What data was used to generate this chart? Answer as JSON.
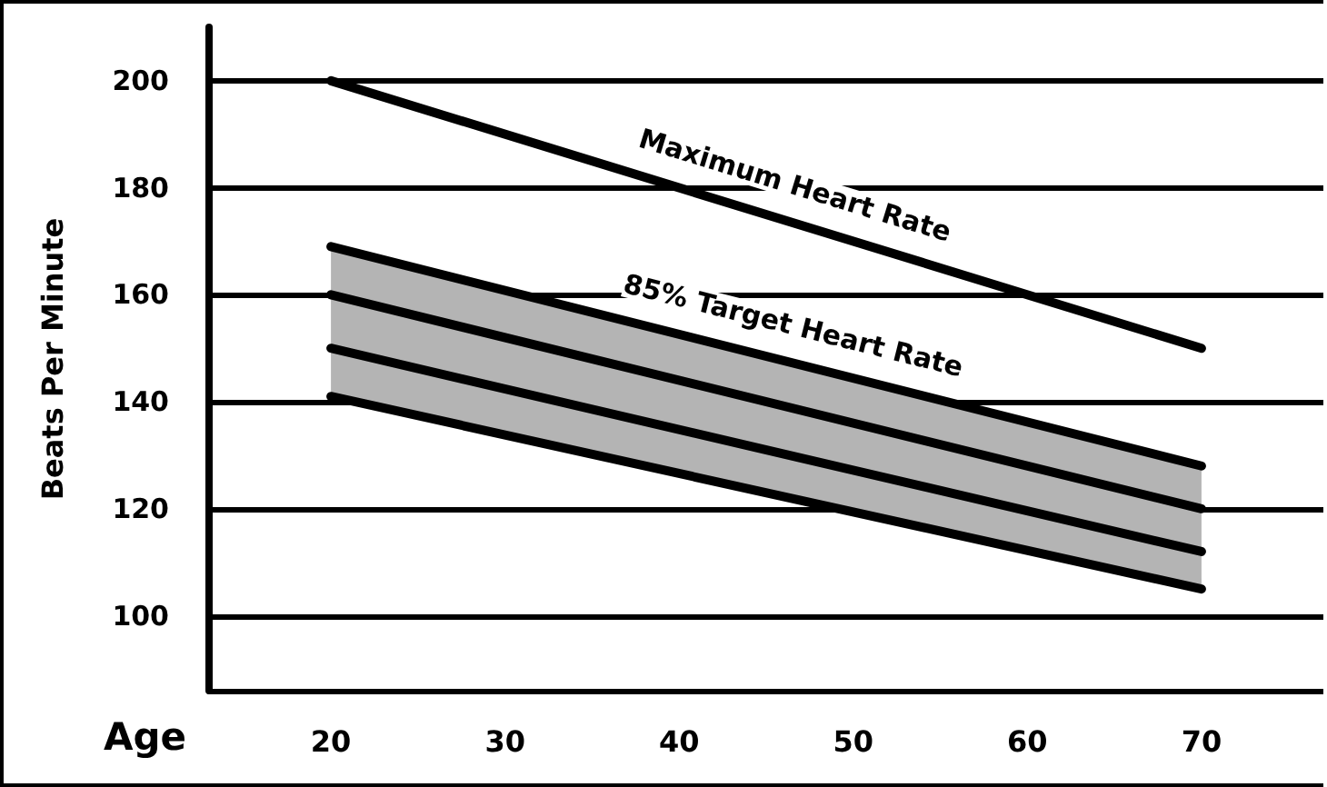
{
  "chart_data": {
    "type": "line",
    "xlabel": "Age",
    "ylabel": "Beats Per Minute",
    "x": [
      20,
      70
    ],
    "xlim": [
      13,
      77
    ],
    "xticks": [
      20,
      30,
      40,
      50,
      60,
      70
    ],
    "ylim": [
      86,
      210
    ],
    "yticks": [
      100,
      120,
      140,
      160,
      180,
      200
    ],
    "grid": "y",
    "line_style": "solid",
    "series": [
      {
        "name": "Maximum Heart Rate",
        "color": "#000000",
        "values": [
          200,
          150
        ]
      },
      {
        "name": "85% Target Heart Rate",
        "color": "#000000",
        "values": [
          169,
          128
        ]
      },
      {
        "color": "#000000",
        "values": [
          160,
          120
        ],
        "lower": [
          141,
          105
        ],
        "upper": [
          169,
          128
        ]
      },
      {
        "color": "#000000",
        "values": [
          150,
          112
        ]
      },
      {
        "color": "#000000",
        "values": [
          141,
          105
        ]
      }
    ]
  }
}
